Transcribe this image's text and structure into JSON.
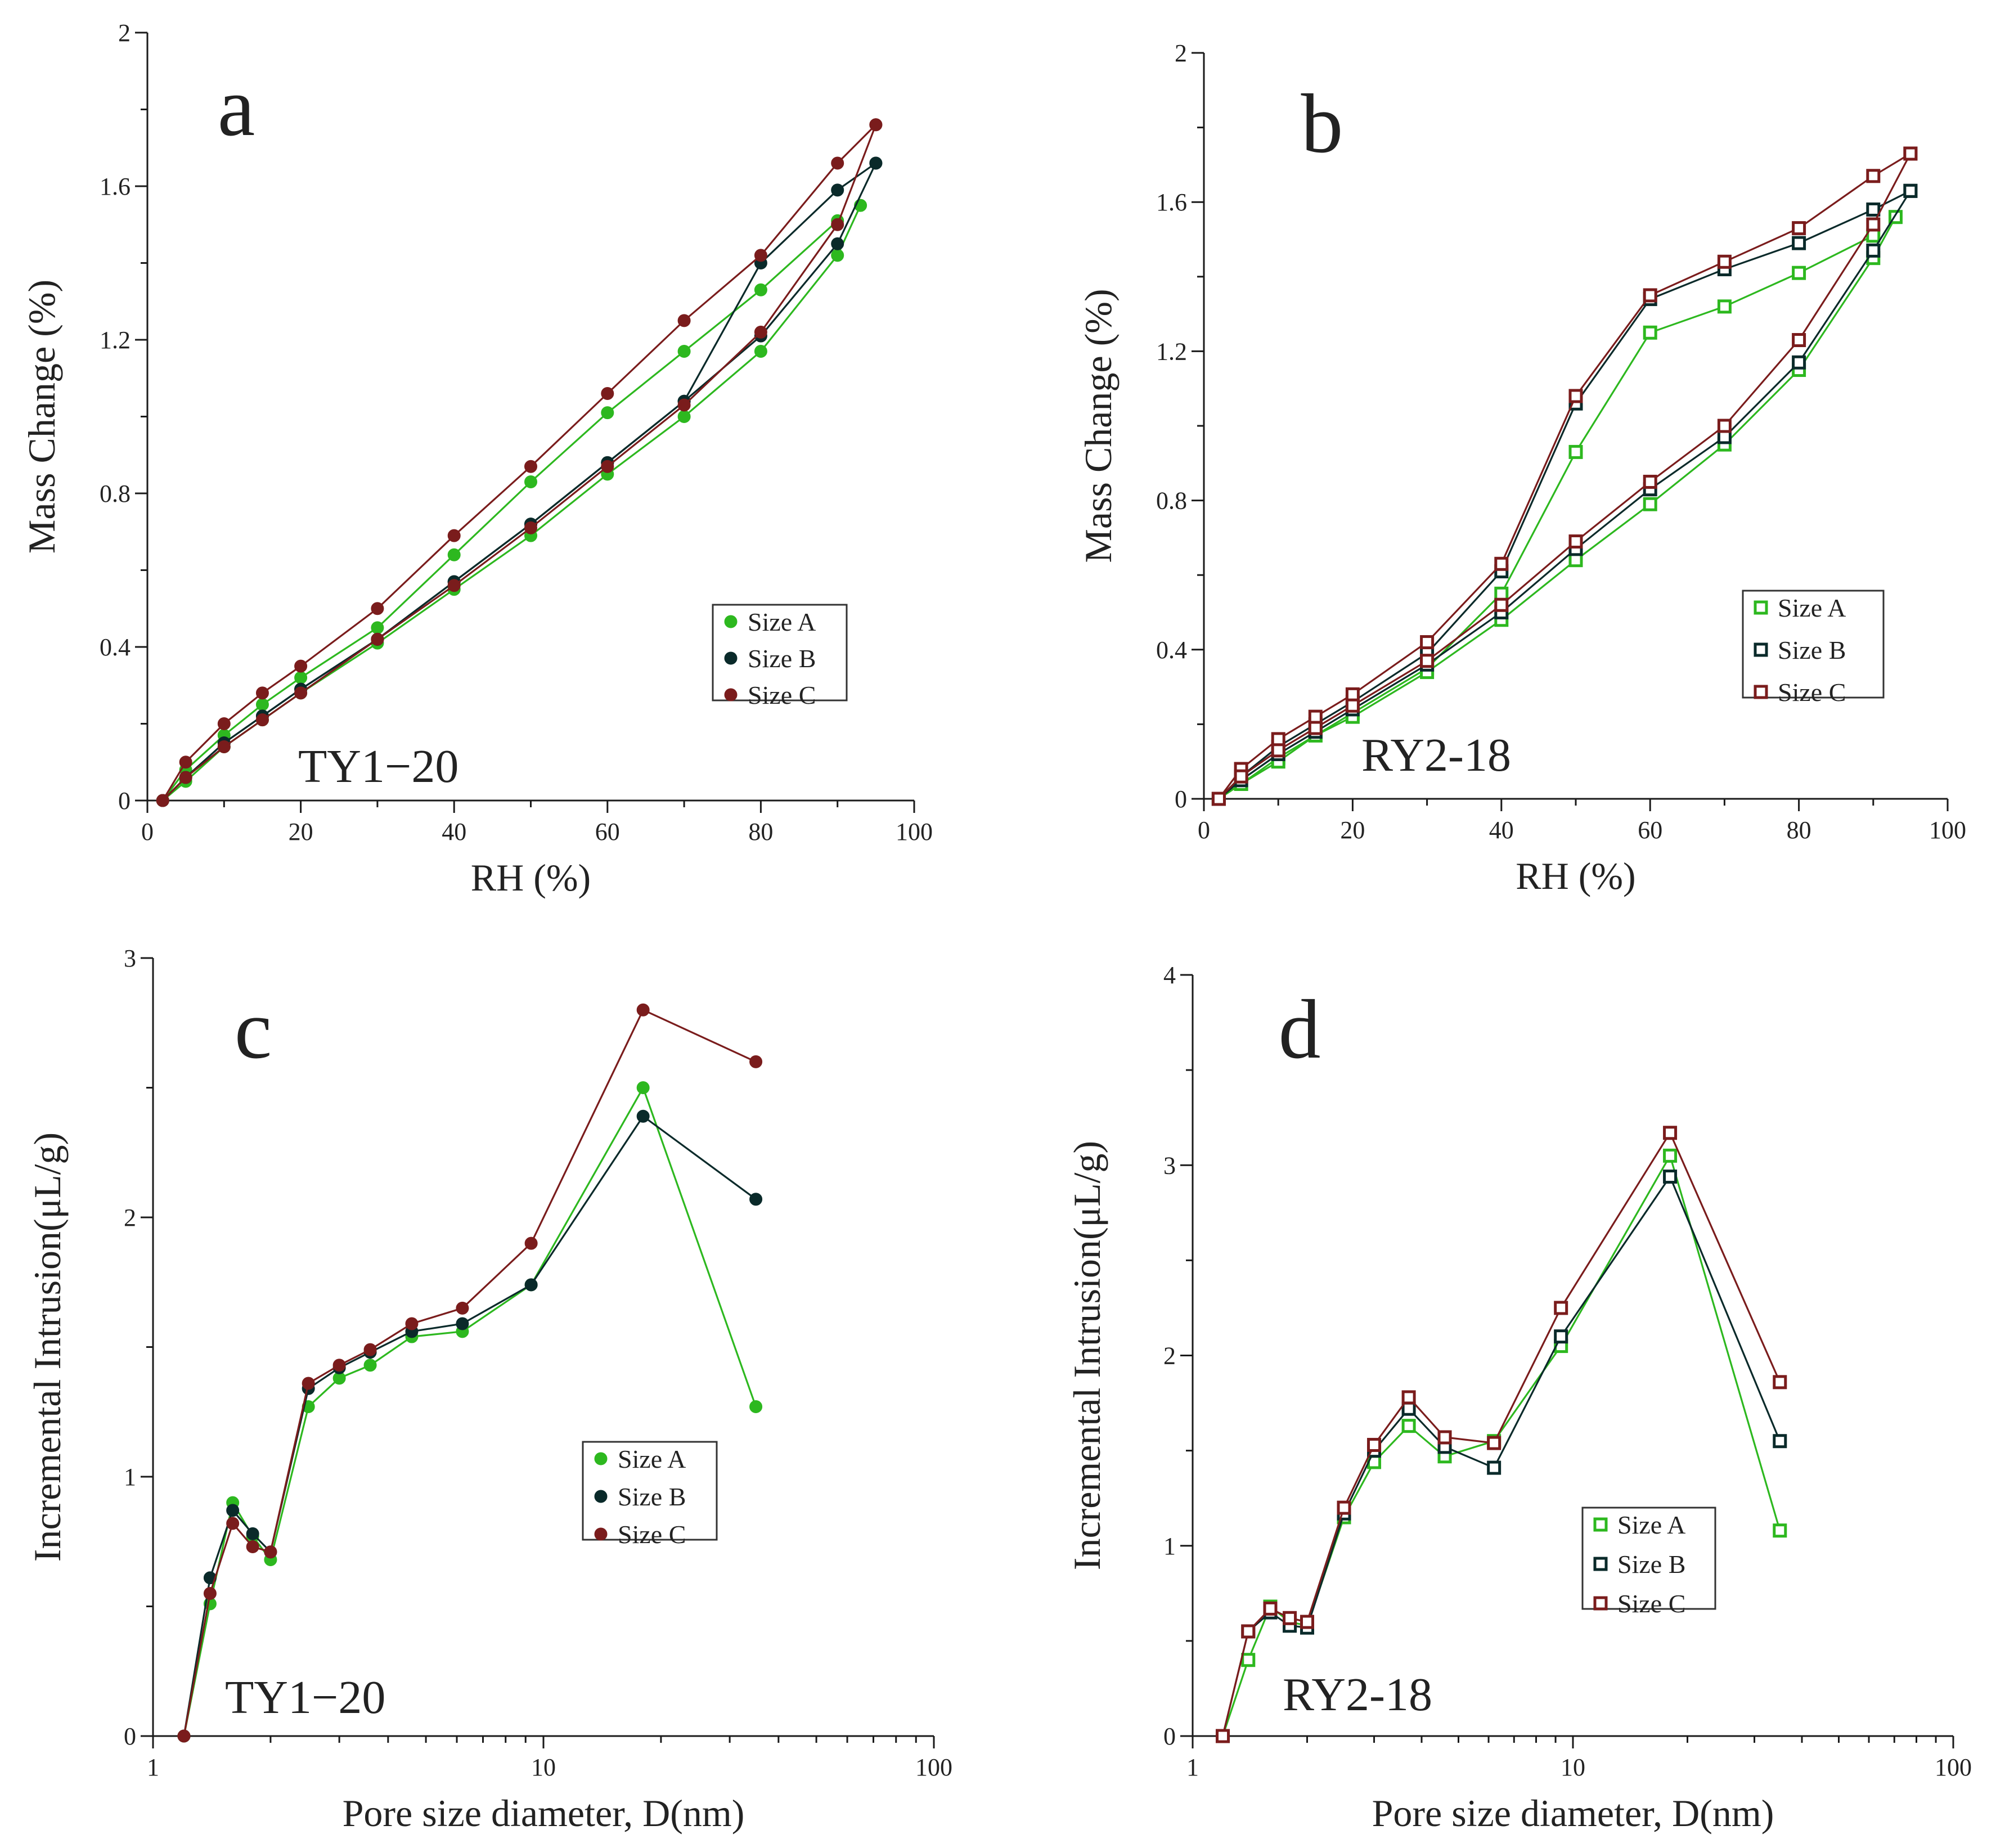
{
  "colors": {
    "size_a": "#2db81f",
    "size_b": "#0a2a2a",
    "size_c": "#7a1c1c",
    "axis": "#1a1a1a"
  },
  "chart_data": [
    {
      "panel": "a",
      "type": "line",
      "marker": "filled-circle",
      "sample_label": "TY1−20",
      "xlabel": "RH (%)",
      "ylabel": "Mass Change (%)",
      "xlim": [
        0,
        100
      ],
      "ylim": [
        0,
        2
      ],
      "xscale": "linear",
      "x_ticks": [
        0,
        20,
        40,
        60,
        80,
        100
      ],
      "x_tick_labels": [
        "0",
        "20",
        "40",
        "60",
        "80",
        "100"
      ],
      "y_ticks": [
        0,
        0.4,
        0.8,
        1.2,
        1.6,
        2
      ],
      "y_tick_labels": [
        "0",
        "0.4",
        "0.8",
        "1.2",
        "1.6",
        "2"
      ],
      "legend": {
        "placement": "center-right",
        "entries": [
          "Size A",
          "Size B",
          "Size C"
        ]
      },
      "series": [
        {
          "name": "Size A",
          "color_key": "size_a",
          "adsorption": {
            "x": [
              2,
              5,
              10,
              15,
              20,
              30,
              40,
              50,
              60,
              70,
              80,
              90
            ],
            "y": [
              0,
              0.08,
              0.17,
              0.25,
              0.32,
              0.45,
              0.64,
              0.83,
              1.01,
              1.17,
              1.33,
              1.51
            ]
          },
          "desorption": {
            "x": [
              93,
              90,
              80,
              70,
              60,
              50,
              40,
              30,
              20,
              15,
              10,
              5,
              2
            ],
            "y": [
              1.55,
              1.42,
              1.17,
              1.0,
              0.85,
              0.69,
              0.55,
              0.41,
              0.28,
              0.21,
              0.14,
              0.05,
              0
            ]
          }
        },
        {
          "name": "Size B",
          "color_key": "size_b",
          "adsorption": {
            "x": [
              2,
              5,
              10,
              15,
              20,
              30,
              40,
              50,
              60,
              70,
              80,
              90,
              95
            ],
            "y": [
              0,
              0.06,
              0.15,
              0.22,
              0.29,
              0.42,
              0.57,
              0.72,
              0.88,
              1.04,
              1.4,
              1.59,
              1.66
            ]
          },
          "desorption": {
            "x": [
              95,
              90,
              80,
              70,
              60,
              50,
              40,
              30,
              20,
              15,
              10,
              5,
              2
            ],
            "y": [
              1.66,
              1.45,
              1.21,
              1.04,
              0.88,
              0.72,
              0.57,
              0.42,
              0.29,
              0.22,
              0.15,
              0.06,
              0
            ]
          }
        },
        {
          "name": "Size C",
          "color_key": "size_c",
          "adsorption": {
            "x": [
              2,
              5,
              10,
              15,
              20,
              30,
              40,
              50,
              60,
              70,
              80,
              90,
              95
            ],
            "y": [
              0,
              0.1,
              0.2,
              0.28,
              0.35,
              0.5,
              0.69,
              0.87,
              1.06,
              1.25,
              1.42,
              1.66,
              1.76
            ]
          },
          "desorption": {
            "x": [
              95,
              90,
              80,
              70,
              60,
              50,
              40,
              30,
              20,
              15,
              10,
              5,
              2
            ],
            "y": [
              1.76,
              1.5,
              1.22,
              1.03,
              0.87,
              0.71,
              0.56,
              0.42,
              0.28,
              0.21,
              0.14,
              0.06,
              0
            ]
          }
        }
      ]
    },
    {
      "panel": "b",
      "type": "line",
      "marker": "open-square",
      "sample_label": "RY2-18",
      "xlabel": "RH (%)",
      "ylabel": "Mass Change (%)",
      "xlim": [
        0,
        100
      ],
      "ylim": [
        0,
        2
      ],
      "xscale": "linear",
      "x_ticks": [
        0,
        20,
        40,
        60,
        80,
        100
      ],
      "x_tick_labels": [
        "0",
        "20",
        "40",
        "60",
        "80",
        "100"
      ],
      "y_ticks": [
        0,
        0.4,
        0.8,
        1.2,
        1.6,
        2
      ],
      "y_tick_labels": [
        "0",
        "0.4",
        "0.8",
        "1.2",
        "1.6",
        "2"
      ],
      "legend": {
        "placement": "center-right",
        "entries": [
          "Size A",
          "Size B",
          "Size C"
        ]
      },
      "series": [
        {
          "name": "Size A",
          "color_key": "size_a",
          "adsorption": {
            "x": [
              2,
              5,
              10,
              15,
              20,
              30,
              40,
              50,
              60,
              70,
              80,
              90
            ],
            "y": [
              0,
              0.04,
              0.11,
              0.17,
              0.23,
              0.35,
              0.55,
              0.93,
              1.25,
              1.32,
              1.41,
              1.51
            ]
          },
          "desorption": {
            "x": [
              93,
              90,
              80,
              70,
              60,
              50,
              40,
              30,
              20,
              15,
              10,
              5,
              2
            ],
            "y": [
              1.56,
              1.45,
              1.15,
              0.95,
              0.79,
              0.64,
              0.48,
              0.34,
              0.22,
              0.17,
              0.1,
              0.04,
              0
            ]
          }
        },
        {
          "name": "Size B",
          "color_key": "size_b",
          "adsorption": {
            "x": [
              2,
              5,
              10,
              15,
              20,
              30,
              40,
              50,
              60,
              70,
              80,
              90,
              95
            ],
            "y": [
              0,
              0.06,
              0.14,
              0.2,
              0.26,
              0.39,
              0.61,
              1.06,
              1.34,
              1.42,
              1.49,
              1.58,
              1.63
            ]
          },
          "desorption": {
            "x": [
              95,
              90,
              80,
              70,
              60,
              50,
              40,
              30,
              20,
              15,
              10,
              5,
              2
            ],
            "y": [
              1.63,
              1.47,
              1.17,
              0.97,
              0.83,
              0.67,
              0.5,
              0.36,
              0.24,
              0.18,
              0.12,
              0.05,
              0
            ]
          }
        },
        {
          "name": "Size C",
          "color_key": "size_c",
          "adsorption": {
            "x": [
              2,
              5,
              10,
              15,
              20,
              30,
              40,
              50,
              60,
              70,
              80,
              90,
              95
            ],
            "y": [
              0,
              0.08,
              0.16,
              0.22,
              0.28,
              0.42,
              0.63,
              1.08,
              1.35,
              1.44,
              1.53,
              1.67,
              1.73
            ]
          },
          "desorption": {
            "x": [
              95,
              90,
              80,
              70,
              60,
              50,
              40,
              30,
              20,
              15,
              10,
              5,
              2
            ],
            "y": [
              1.73,
              1.54,
              1.23,
              1.0,
              0.85,
              0.69,
              0.52,
              0.37,
              0.25,
              0.19,
              0.13,
              0.06,
              0
            ]
          }
        }
      ]
    },
    {
      "panel": "c",
      "type": "line",
      "marker": "filled-circle",
      "sample_label": "TY1−20",
      "xlabel": "Pore size diameter, D(nm)",
      "ylabel": "Incremental Intrusion(μL/g)",
      "xlim": [
        1,
        100
      ],
      "ylim": [
        0,
        3
      ],
      "xscale": "log",
      "x_ticks": [
        1,
        10,
        100
      ],
      "x_tick_labels": [
        "1",
        "10",
        "100"
      ],
      "y_ticks": [
        0,
        1,
        2,
        3
      ],
      "y_tick_labels": [
        "0",
        "1",
        "2",
        "3"
      ],
      "legend": {
        "placement": "center-right",
        "entries": [
          "Size A",
          "Size B",
          "Size C"
        ]
      },
      "series": [
        {
          "name": "Size A",
          "color_key": "size_a",
          "x": [
            1.2,
            1.4,
            1.6,
            1.8,
            2.0,
            2.5,
            3.0,
            3.6,
            4.6,
            6.2,
            9.3,
            18.0,
            35.0
          ],
          "y": [
            0,
            0.51,
            0.9,
            0.77,
            0.68,
            1.27,
            1.38,
            1.43,
            1.54,
            1.56,
            1.74,
            2.5,
            1.27
          ]
        },
        {
          "name": "Size B",
          "color_key": "size_b",
          "x": [
            1.2,
            1.4,
            1.6,
            1.8,
            2.0,
            2.5,
            3.0,
            3.6,
            4.6,
            6.2,
            9.3,
            18.0,
            35.0
          ],
          "y": [
            0,
            0.61,
            0.87,
            0.78,
            0.71,
            1.34,
            1.42,
            1.48,
            1.56,
            1.59,
            1.74,
            2.39,
            2.07
          ]
        },
        {
          "name": "Size C",
          "color_key": "size_c",
          "x": [
            1.2,
            1.4,
            1.6,
            1.8,
            2.0,
            2.5,
            3.0,
            3.6,
            4.6,
            6.2,
            9.3,
            18.0,
            35.0
          ],
          "y": [
            0,
            0.55,
            0.82,
            0.73,
            0.71,
            1.36,
            1.43,
            1.49,
            1.59,
            1.65,
            1.9,
            2.8,
            2.6
          ]
        }
      ]
    },
    {
      "panel": "d",
      "type": "line",
      "marker": "open-square",
      "sample_label": "RY2-18",
      "xlabel": "Pore size diameter, D(nm)",
      "ylabel": "Incremental Intrusion(μL/g)",
      "xlim": [
        1,
        100
      ],
      "ylim": [
        0,
        4
      ],
      "xscale": "log",
      "x_ticks": [
        1,
        10,
        100
      ],
      "x_tick_labels": [
        "1",
        "10",
        "100"
      ],
      "y_ticks": [
        0,
        1,
        2,
        3,
        4
      ],
      "y_tick_labels": [
        "0",
        "1",
        "2",
        "3",
        "4"
      ],
      "legend": {
        "placement": "center-right",
        "entries": [
          "Size A",
          "Size B",
          "Size C"
        ]
      },
      "series": [
        {
          "name": "Size A",
          "color_key": "size_a",
          "x": [
            1.2,
            1.4,
            1.6,
            1.8,
            2.0,
            2.5,
            3.0,
            3.7,
            4.6,
            6.2,
            9.3,
            18.0,
            35.0
          ],
          "y": [
            0,
            0.4,
            0.68,
            0.6,
            0.58,
            1.15,
            1.44,
            1.63,
            1.47,
            1.55,
            2.05,
            3.05,
            1.08
          ]
        },
        {
          "name": "Size B",
          "color_key": "size_b",
          "x": [
            1.2,
            1.4,
            1.6,
            1.8,
            2.0,
            2.5,
            3.0,
            3.7,
            4.6,
            6.2,
            9.3,
            18.0,
            35.0
          ],
          "y": [
            0,
            0.55,
            0.65,
            0.58,
            0.57,
            1.17,
            1.5,
            1.72,
            1.52,
            1.41,
            2.1,
            2.94,
            1.55
          ]
        },
        {
          "name": "Size C",
          "color_key": "size_c",
          "x": [
            1.2,
            1.4,
            1.6,
            1.8,
            2.0,
            2.5,
            3.0,
            3.7,
            4.6,
            6.2,
            9.3,
            18.0,
            35.0
          ],
          "y": [
            0,
            0.55,
            0.67,
            0.62,
            0.6,
            1.2,
            1.53,
            1.78,
            1.57,
            1.54,
            2.25,
            3.17,
            1.86
          ]
        }
      ]
    }
  ]
}
